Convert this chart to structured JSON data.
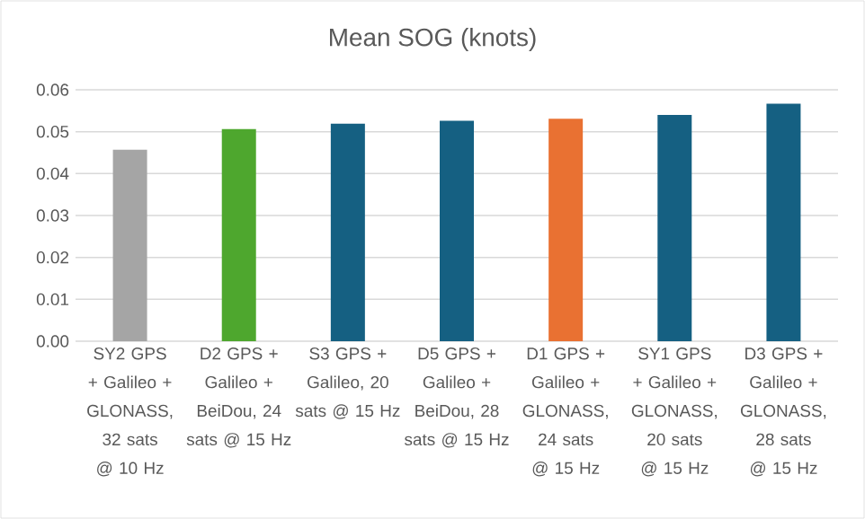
{
  "chart_data": {
    "type": "bar",
    "title": "Mean SOG (knots)",
    "categories": [
      "SY2 GPS + Galileo + GLONASS, 32 sats @ 10 Hz",
      "D2 GPS + Galileo + BeiDou, 24 sats @ 15 Hz",
      "S3 GPS + Galileo, 20 sats @ 15 Hz",
      "D5 GPS + Galileo + BeiDou, 28 sats @ 15 Hz",
      "D1 GPS + Galileo + GLONASS, 24 sats @ 15 Hz",
      "SY1 GPS + Galileo + GLONASS, 20 sats @ 15 Hz",
      "D3 GPS + Galileo + GLONASS, 28 sats @ 15 Hz"
    ],
    "values": [
      0.0457,
      0.0506,
      0.0519,
      0.0526,
      0.0531,
      0.054,
      0.0567
    ],
    "colors": [
      "#a5a5a5",
      "#4ea72e",
      "#156082",
      "#156082",
      "#e97132",
      "#156082",
      "#156082"
    ],
    "ylim": [
      0,
      0.06
    ],
    "yticks": [
      {
        "value": 0,
        "label": "0.00"
      },
      {
        "value": 0.01,
        "label": "0.01"
      },
      {
        "value": 0.02,
        "label": "0.02"
      },
      {
        "value": 0.03,
        "label": "0.03"
      },
      {
        "value": 0.04,
        "label": "0.04"
      },
      {
        "value": 0.05,
        "label": "0.05"
      },
      {
        "value": 0.06,
        "label": "0.06"
      }
    ],
    "grid": "y"
  }
}
